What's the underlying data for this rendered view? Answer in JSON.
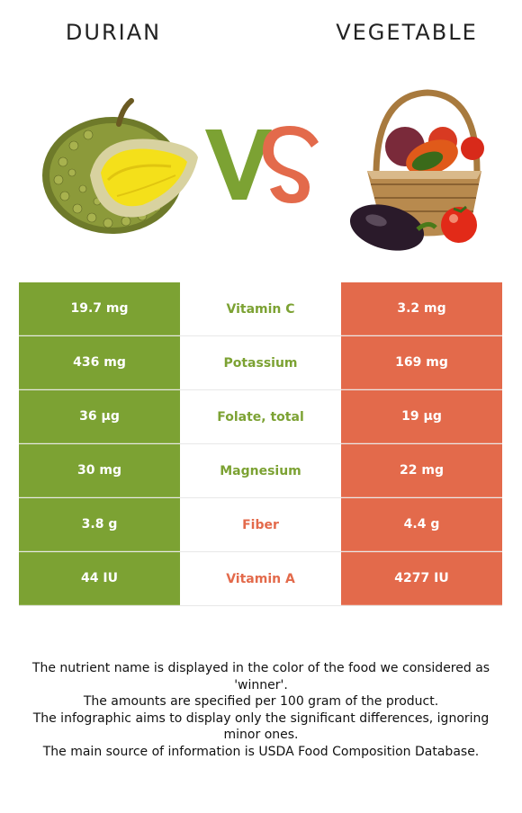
{
  "left_food": {
    "name": "DURIAN",
    "image_icon": "durian-image",
    "color": "#7ca233"
  },
  "right_food": {
    "name": "VEGETABLE",
    "image_icon": "vegetable-basket-image",
    "color": "#e36a4b"
  },
  "vs_icon": "vs-logo",
  "rows": [
    {
      "nutrient": "Vitamin C",
      "left": "19.7 mg",
      "right": "3.2 mg",
      "winner": "left"
    },
    {
      "nutrient": "Potassium",
      "left": "436 mg",
      "right": "169 mg",
      "winner": "left"
    },
    {
      "nutrient": "Folate, total",
      "left": "36 µg",
      "right": "19 µg",
      "winner": "left"
    },
    {
      "nutrient": "Magnesium",
      "left": "30 mg",
      "right": "22 mg",
      "winner": "left"
    },
    {
      "nutrient": "Fiber",
      "left": "3.8 g",
      "right": "4.4 g",
      "winner": "right"
    },
    {
      "nutrient": "Vitamin A",
      "left": "44 IU",
      "right": "4277 IU",
      "winner": "right"
    }
  ],
  "footnotes": [
    "The nutrient name is displayed in the color of the food we considered as 'winner'.",
    "The amounts are specified per 100 gram of the product.",
    "The infographic aims to display only the significant differences, ignoring minor ones.",
    "The main source of information is USDA Food Composition Database."
  ]
}
